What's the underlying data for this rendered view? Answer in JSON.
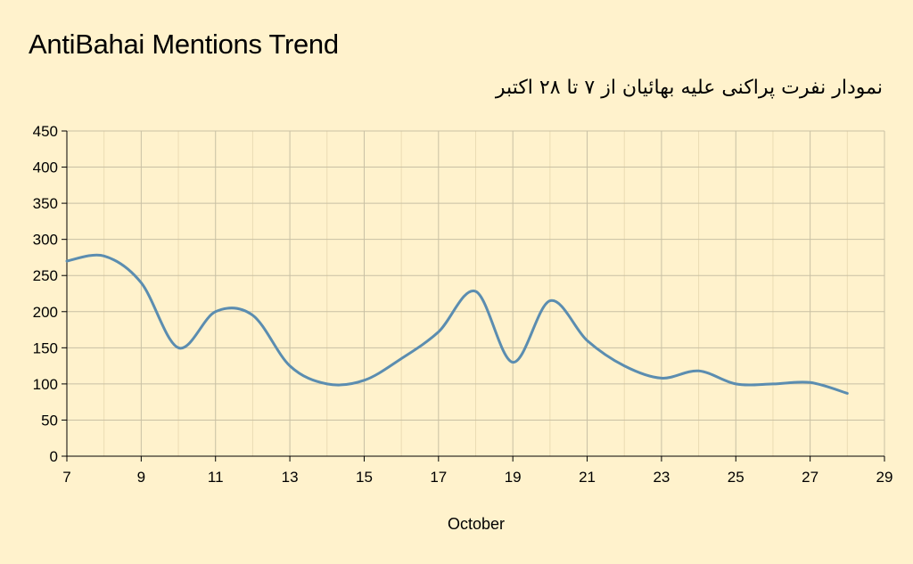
{
  "chart_data": {
    "type": "line",
    "title": "AntiBahai Mentions Trend",
    "subtitle": "نمودار نفرت پراکنی علیه بهائیان از ۷ تا ۲۸ اکتبر",
    "xlabel": "October",
    "ylabel": "",
    "xlim": [
      7,
      29
    ],
    "ylim": [
      0,
      450
    ],
    "x_ticks": [
      7,
      9,
      11,
      13,
      15,
      17,
      19,
      21,
      23,
      25,
      27,
      29
    ],
    "y_ticks": [
      0,
      50,
      100,
      150,
      200,
      250,
      300,
      350,
      400,
      450
    ],
    "grid": true,
    "legend": "none",
    "colors": {
      "line": "#5b8db0",
      "grid_major": "#c8c0a4",
      "grid_minor": "#ebdcb4",
      "axis": "#000000"
    },
    "series": [
      {
        "x": [
          7,
          8,
          9,
          10,
          11,
          12,
          13,
          14,
          15,
          16,
          17,
          18,
          19,
          20,
          21,
          22,
          23,
          24,
          25,
          26,
          27,
          28
        ],
        "values": [
          270,
          277,
          240,
          150,
          200,
          195,
          125,
          100,
          105,
          135,
          172,
          228,
          130,
          215,
          160,
          125,
          108,
          118,
          100,
          100,
          102,
          87
        ]
      }
    ]
  }
}
